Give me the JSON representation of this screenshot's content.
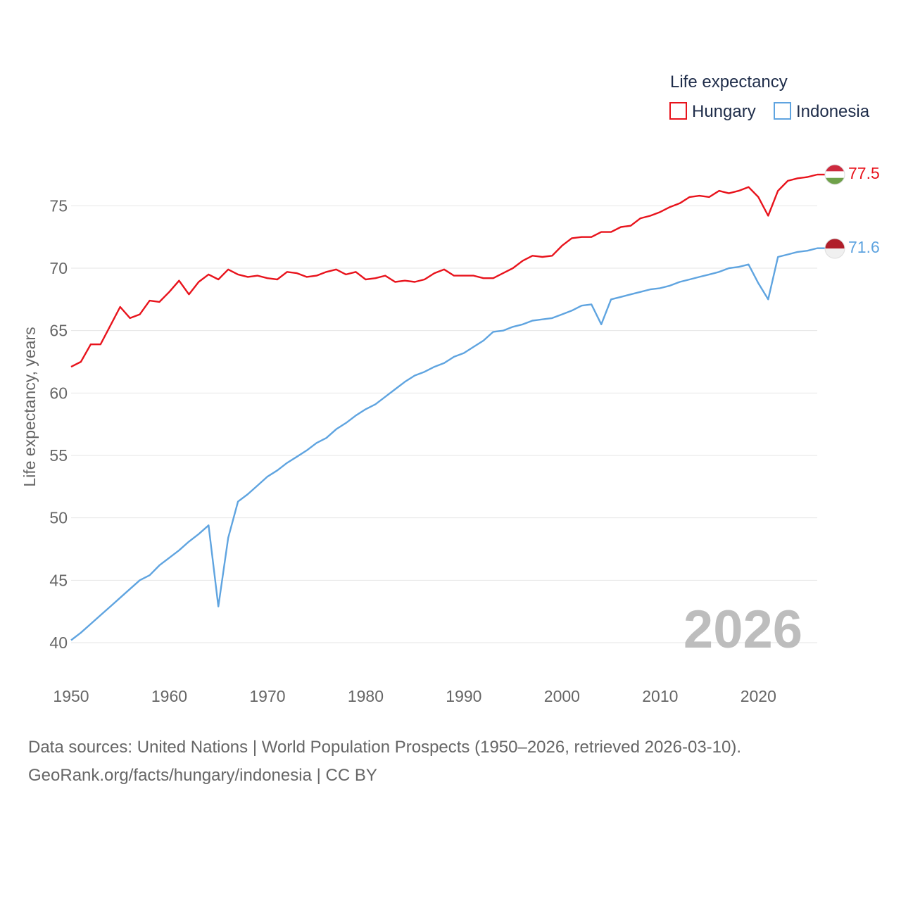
{
  "chart_data": {
    "type": "line",
    "legend_title": "Life expectancy",
    "ylabel": "Life expectancy, years",
    "xlim": [
      1950,
      2026
    ],
    "ylim": [
      40,
      77.5
    ],
    "xticks": [
      1950,
      1960,
      1970,
      1980,
      1990,
      2000,
      2010,
      2020
    ],
    "yticks": [
      40,
      45,
      50,
      55,
      60,
      65,
      70,
      75
    ],
    "watermark_year": "2026",
    "legend_position": "top-right",
    "x": [
      1950,
      1951,
      1952,
      1953,
      1954,
      1955,
      1956,
      1957,
      1958,
      1959,
      1960,
      1961,
      1962,
      1963,
      1964,
      1965,
      1966,
      1967,
      1968,
      1969,
      1970,
      1971,
      1972,
      1973,
      1974,
      1975,
      1976,
      1977,
      1978,
      1979,
      1980,
      1981,
      1982,
      1983,
      1984,
      1985,
      1986,
      1987,
      1988,
      1989,
      1990,
      1991,
      1992,
      1993,
      1994,
      1995,
      1996,
      1997,
      1998,
      1999,
      2000,
      2001,
      2002,
      2003,
      2004,
      2005,
      2006,
      2007,
      2008,
      2009,
      2010,
      2011,
      2012,
      2013,
      2014,
      2015,
      2016,
      2017,
      2018,
      2019,
      2020,
      2021,
      2022,
      2023,
      2024,
      2025,
      2026
    ],
    "series": [
      {
        "name": "Hungary",
        "color": "#e8131c",
        "end_label": "77.5",
        "flag": "hungary-flag-icon",
        "values": [
          62.1,
          62.5,
          63.9,
          63.9,
          65.4,
          66.9,
          66.0,
          66.3,
          67.4,
          67.3,
          68.1,
          69.0,
          67.9,
          68.9,
          69.5,
          69.1,
          69.9,
          69.5,
          69.3,
          69.4,
          69.2,
          69.1,
          69.7,
          69.6,
          69.3,
          69.4,
          69.7,
          69.9,
          69.5,
          69.7,
          69.1,
          69.2,
          69.4,
          68.9,
          69.0,
          68.9,
          69.1,
          69.6,
          69.9,
          69.4,
          69.4,
          69.4,
          69.2,
          69.2,
          69.6,
          70.0,
          70.6,
          71.0,
          70.9,
          71.0,
          71.8,
          72.4,
          72.5,
          72.5,
          72.9,
          72.9,
          73.3,
          73.4,
          74.0,
          74.2,
          74.5,
          74.9,
          75.2,
          75.7,
          75.8,
          75.7,
          76.2,
          76.0,
          76.2,
          76.5,
          75.7,
          74.2,
          76.2,
          77.0,
          77.2,
          77.3,
          77.5
        ]
      },
      {
        "name": "Indonesia",
        "color": "#5fa4e0",
        "end_label": "71.6",
        "flag": "indonesia-flag-icon",
        "values": [
          40.2,
          40.8,
          41.5,
          42.2,
          42.9,
          43.6,
          44.3,
          45.0,
          45.4,
          46.2,
          46.8,
          47.4,
          48.1,
          48.7,
          49.4,
          42.9,
          48.4,
          51.3,
          51.9,
          52.6,
          53.3,
          53.8,
          54.4,
          54.9,
          55.4,
          56.0,
          56.4,
          57.1,
          57.6,
          58.2,
          58.7,
          59.1,
          59.7,
          60.3,
          60.9,
          61.4,
          61.7,
          62.1,
          62.4,
          62.9,
          63.2,
          63.7,
          64.2,
          64.9,
          65.0,
          65.3,
          65.5,
          65.8,
          65.9,
          66.0,
          66.3,
          66.6,
          67.0,
          67.1,
          65.5,
          67.5,
          67.7,
          67.9,
          68.1,
          68.3,
          68.4,
          68.6,
          68.9,
          69.1,
          69.3,
          69.5,
          69.7,
          70.0,
          70.1,
          70.3,
          68.8,
          67.5,
          70.9,
          71.1,
          71.3,
          71.4,
          71.6
        ]
      }
    ]
  },
  "footer": {
    "source_line": "Data sources: United Nations | World Population Prospects (1950–2026, retrieved 2026-03-10).",
    "credit_line": "GeoRank.org/facts/hungary/indonesia | CC BY"
  }
}
